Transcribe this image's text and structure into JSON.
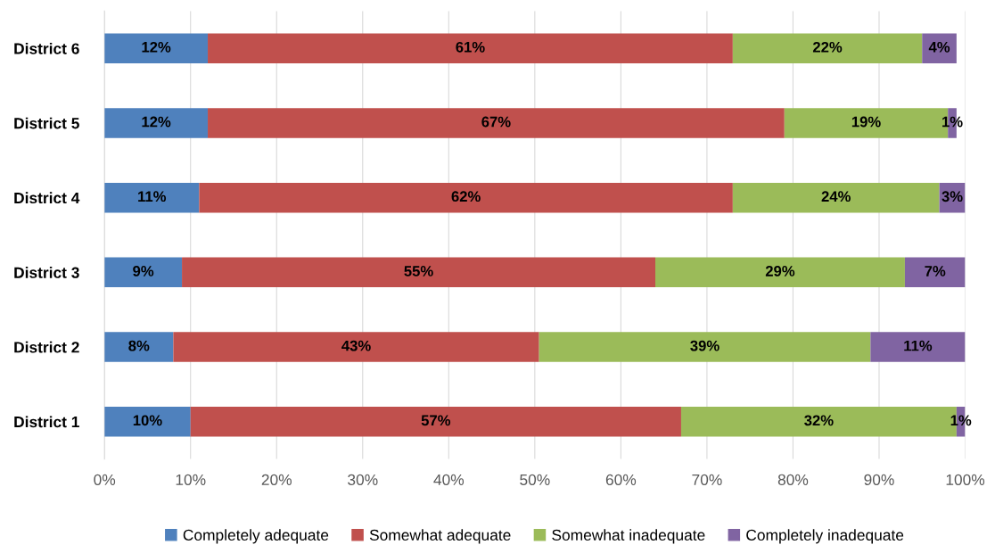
{
  "chart_data": {
    "type": "bar",
    "orientation": "horizontal",
    "stacked": true,
    "categories": [
      "District 6",
      "District 5",
      "District 4",
      "District 3",
      "District 2",
      "District 1"
    ],
    "series": [
      {
        "name": "Completely adequate",
        "color": "#4f81bd",
        "values": [
          12,
          12,
          11,
          9,
          8,
          10
        ],
        "value_labels": [
          "12%",
          "12%",
          "11%",
          "9%",
          "8%",
          "10%"
        ]
      },
      {
        "name": "Somewhat adequate",
        "color": "#c0504d",
        "values": [
          61,
          67,
          62,
          55,
          42.5,
          57
        ],
        "value_labels": [
          "61%",
          "67%",
          "62%",
          "55%",
          "43%",
          "57%"
        ]
      },
      {
        "name": "Somewhat inadequate",
        "color": "#9bbb59",
        "values": [
          22,
          19,
          24,
          29,
          38.5,
          32
        ],
        "value_labels": [
          "22%",
          "19%",
          "24%",
          "29%",
          "39%",
          "32%"
        ]
      },
      {
        "name": "Completely inadequate",
        "color": "#8064a2",
        "values": [
          4,
          1,
          3,
          7,
          11,
          1
        ],
        "value_labels": [
          "4%",
          "1%",
          "3%",
          "7%",
          "11%",
          "1%"
        ]
      }
    ],
    "xlim": [
      0,
      100
    ],
    "xticks": [
      {
        "value": 0,
        "label": "0%"
      },
      {
        "value": 10,
        "label": "10%"
      },
      {
        "value": 20,
        "label": "20%"
      },
      {
        "value": 30,
        "label": "30%"
      },
      {
        "value": 40,
        "label": "40%"
      },
      {
        "value": 50,
        "label": "50%"
      },
      {
        "value": 60,
        "label": "60%"
      },
      {
        "value": 70,
        "label": "70%"
      },
      {
        "value": 80,
        "label": "80%"
      },
      {
        "value": 90,
        "label": "90%"
      },
      {
        "value": 100,
        "label": "100%"
      }
    ],
    "grid": "x",
    "legend": "bottom"
  }
}
